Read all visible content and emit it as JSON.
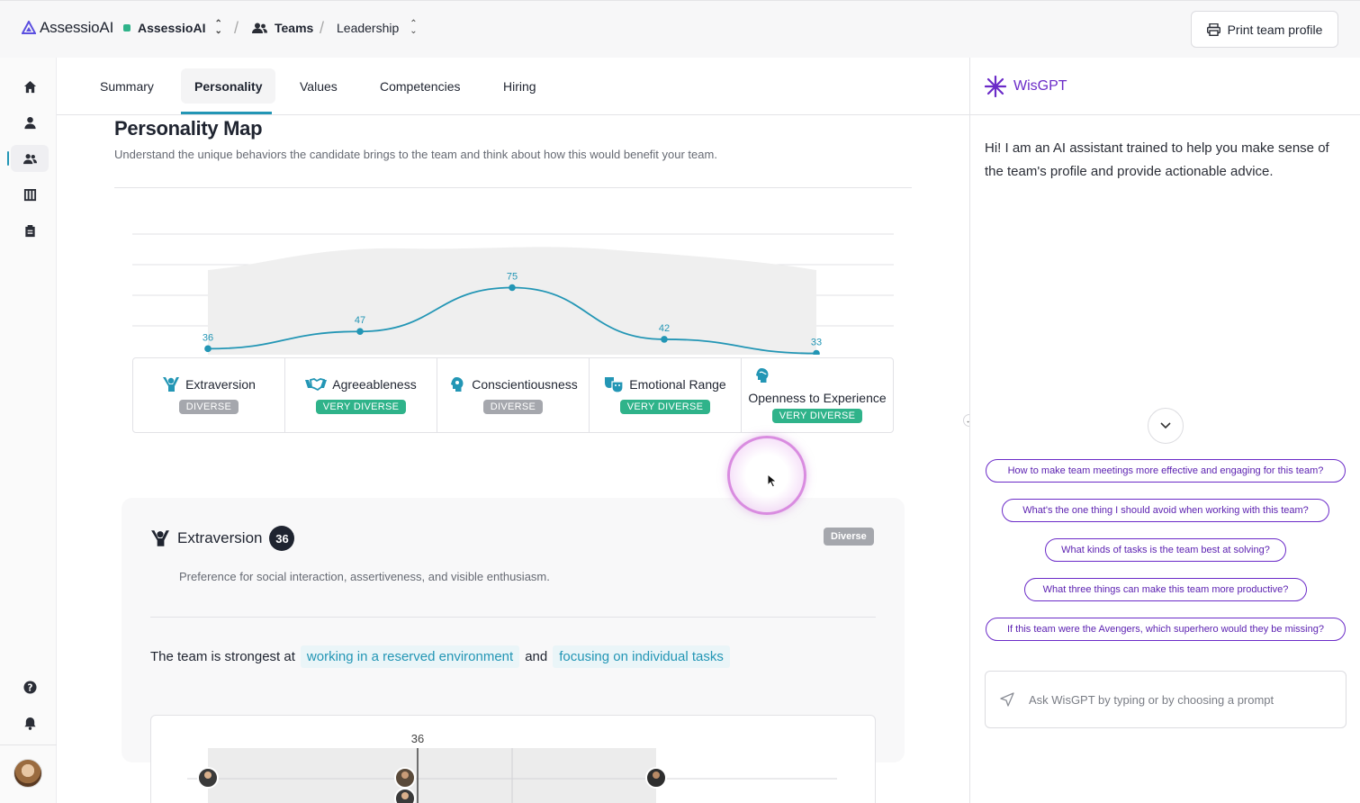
{
  "topbar": {
    "brand": "AssessioAI",
    "org": "AssessioAI",
    "breadcrumb_teams": "Teams",
    "breadcrumb_team": "Leadership",
    "print_label": "Print team profile"
  },
  "rail": {
    "items": [
      "home-icon",
      "person-icon",
      "team-icon",
      "columns-icon",
      "clipboard-icon"
    ],
    "active": "team-icon",
    "bottom": [
      "help-icon",
      "bell-icon"
    ]
  },
  "tabs": [
    "Summary",
    "Personality",
    "Values",
    "Competencies",
    "Hiring"
  ],
  "active_tab": "Personality",
  "personality_map": {
    "title": "Personality Map",
    "subtitle": "Understand the unique behaviors the candidate brings to the team and think about how this would benefit your team."
  },
  "chart_data": {
    "type": "line",
    "categories": [
      "Extraversion",
      "Agreeableness",
      "Conscientiousness",
      "Emotional Range",
      "Openness to Experience"
    ],
    "values": [
      36,
      47,
      75,
      42,
      33
    ],
    "ylim": [
      0,
      100
    ],
    "grid": true,
    "band": "team range (shaded)"
  },
  "traits": [
    {
      "name": "Extraversion",
      "badge": "DIVERSE",
      "tone": "grey"
    },
    {
      "name": "Agreeableness",
      "badge": "VERY DIVERSE",
      "tone": "green"
    },
    {
      "name": "Conscientiousness",
      "badge": "DIVERSE",
      "tone": "grey"
    },
    {
      "name": "Emotional Range",
      "badge": "VERY DIVERSE",
      "tone": "green"
    },
    {
      "name": "Openness to Experience",
      "badge": "VERY DIVERSE",
      "tone": "green"
    }
  ],
  "detail": {
    "title": "Extraversion",
    "score": "36",
    "badge": "Diverse",
    "description": "Preference for social interaction, assertiveness, and visible enthusiasm.",
    "strongest_prefix": "The team is strongest at",
    "strength_1": "working in a reserved environment",
    "conjunction": "and",
    "strength_2": "focusing on individual tasks",
    "subchart_value": "36"
  },
  "panel": {
    "title": "WisGPT",
    "intro": "Hi! I am an AI assistant trained to help you make sense of the team's profile and provide actionable advice.",
    "prompts": [
      "How to make team meetings more effective and engaging for this team?",
      "What's the one thing I should avoid when working with this team?",
      "What kinds of tasks is the team best at solving?",
      "What three things can make this team more productive?",
      "If this team were the Avengers, which superhero would they be missing?"
    ],
    "input_placeholder": "Ask WisGPT by typing or by choosing a prompt"
  },
  "colors": {
    "accent": "#2396b5",
    "purple": "#6b2bc8",
    "green_badge": "#2fb38a",
    "grey_badge": "#a5a7ad"
  }
}
